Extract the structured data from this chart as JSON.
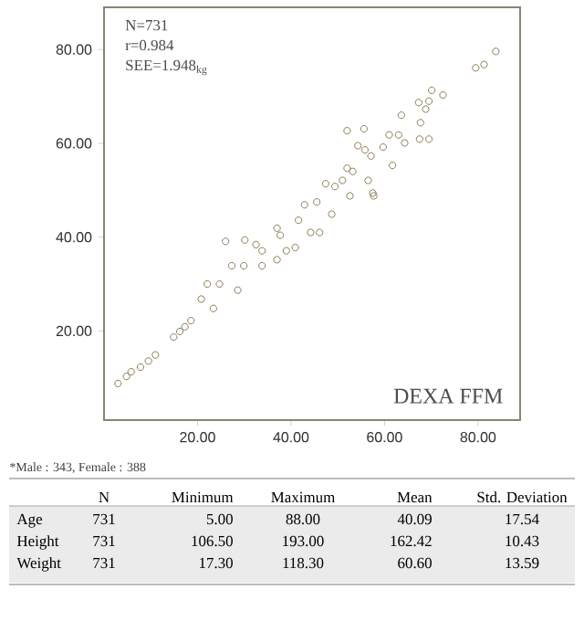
{
  "chart_data": {
    "type": "scatter",
    "marker": "circle",
    "xlim": [
      0,
      89
    ],
    "ylim": [
      1,
      89
    ],
    "xticks": [
      {
        "value": 20,
        "label": "20.00"
      },
      {
        "value": 40,
        "label": "40.00"
      },
      {
        "value": 60,
        "label": "60.00"
      },
      {
        "value": 80,
        "label": "80.00"
      }
    ],
    "yticks": [
      {
        "value": 20,
        "label": "20.00"
      },
      {
        "value": 40,
        "label": "40.00"
      },
      {
        "value": 60,
        "label": "60.00"
      },
      {
        "value": 80,
        "label": "80.00"
      }
    ],
    "x": [
      3.0,
      4.8,
      5.8,
      7.8,
      9.5,
      11.0,
      14.9,
      16.2,
      17.3,
      18.6,
      20.8,
      24.7,
      29.9,
      33.8,
      37.7,
      41.6,
      45.5,
      49.4,
      53.2,
      57.1,
      22.1,
      27.3,
      32.5,
      37.0,
      42.9,
      47.4,
      52.0,
      55.8,
      23.4,
      28.6,
      33.8,
      39.0,
      44.2,
      48.7,
      52.6,
      56.5,
      26.0,
      55.6,
      57.5,
      61.7,
      63.0,
      63.6,
      64.3,
      67.5,
      67.7,
      67.3,
      69.5,
      70.1,
      68.8,
      72.5,
      69.5,
      79.5,
      81.3,
      83.8,
      54.3,
      52.0,
      51.0,
      61.0,
      59.7,
      57.7,
      46.1,
      40.9,
      37.0,
      30.1
    ],
    "values": [
      8.8,
      10.3,
      11.3,
      12.3,
      13.6,
      14.9,
      18.7,
      19.9,
      20.9,
      22.2,
      26.8,
      30.0,
      33.9,
      37.1,
      40.4,
      43.6,
      47.5,
      50.8,
      54.0,
      57.3,
      30.0,
      33.9,
      38.4,
      41.9,
      46.9,
      51.4,
      54.7,
      58.6,
      24.8,
      28.7,
      33.9,
      37.1,
      41.0,
      44.9,
      48.8,
      52.1,
      39.1,
      63.1,
      49.4,
      55.3,
      61.8,
      66.0,
      60.1,
      60.9,
      64.4,
      68.7,
      60.9,
      71.3,
      67.3,
      70.3,
      69.0,
      76.1,
      76.8,
      79.6,
      59.5,
      62.7,
      52.1,
      61.8,
      59.2,
      48.8,
      41.0,
      37.8,
      35.2,
      39.4
    ],
    "color": "#8c7a55",
    "annotations": [
      "N=731",
      "r=0.984",
      "SEE=1.948$_{kg}$",
      "DEXA FFM",
      "*Male : 343,  Female : 388",
      "N",
      "Minimum",
      "Maximum",
      "Mean",
      "Std. Deviation",
      "Age",
      "731",
      "5.00",
      "88.00",
      "40.09",
      "17.54",
      "Height",
      "731",
      "106.50",
      "193.00",
      "162.42",
      "10.43",
      "Weight",
      "731",
      "17.30",
      "118.30",
      "60.60",
      "13.59"
    ]
  }
}
